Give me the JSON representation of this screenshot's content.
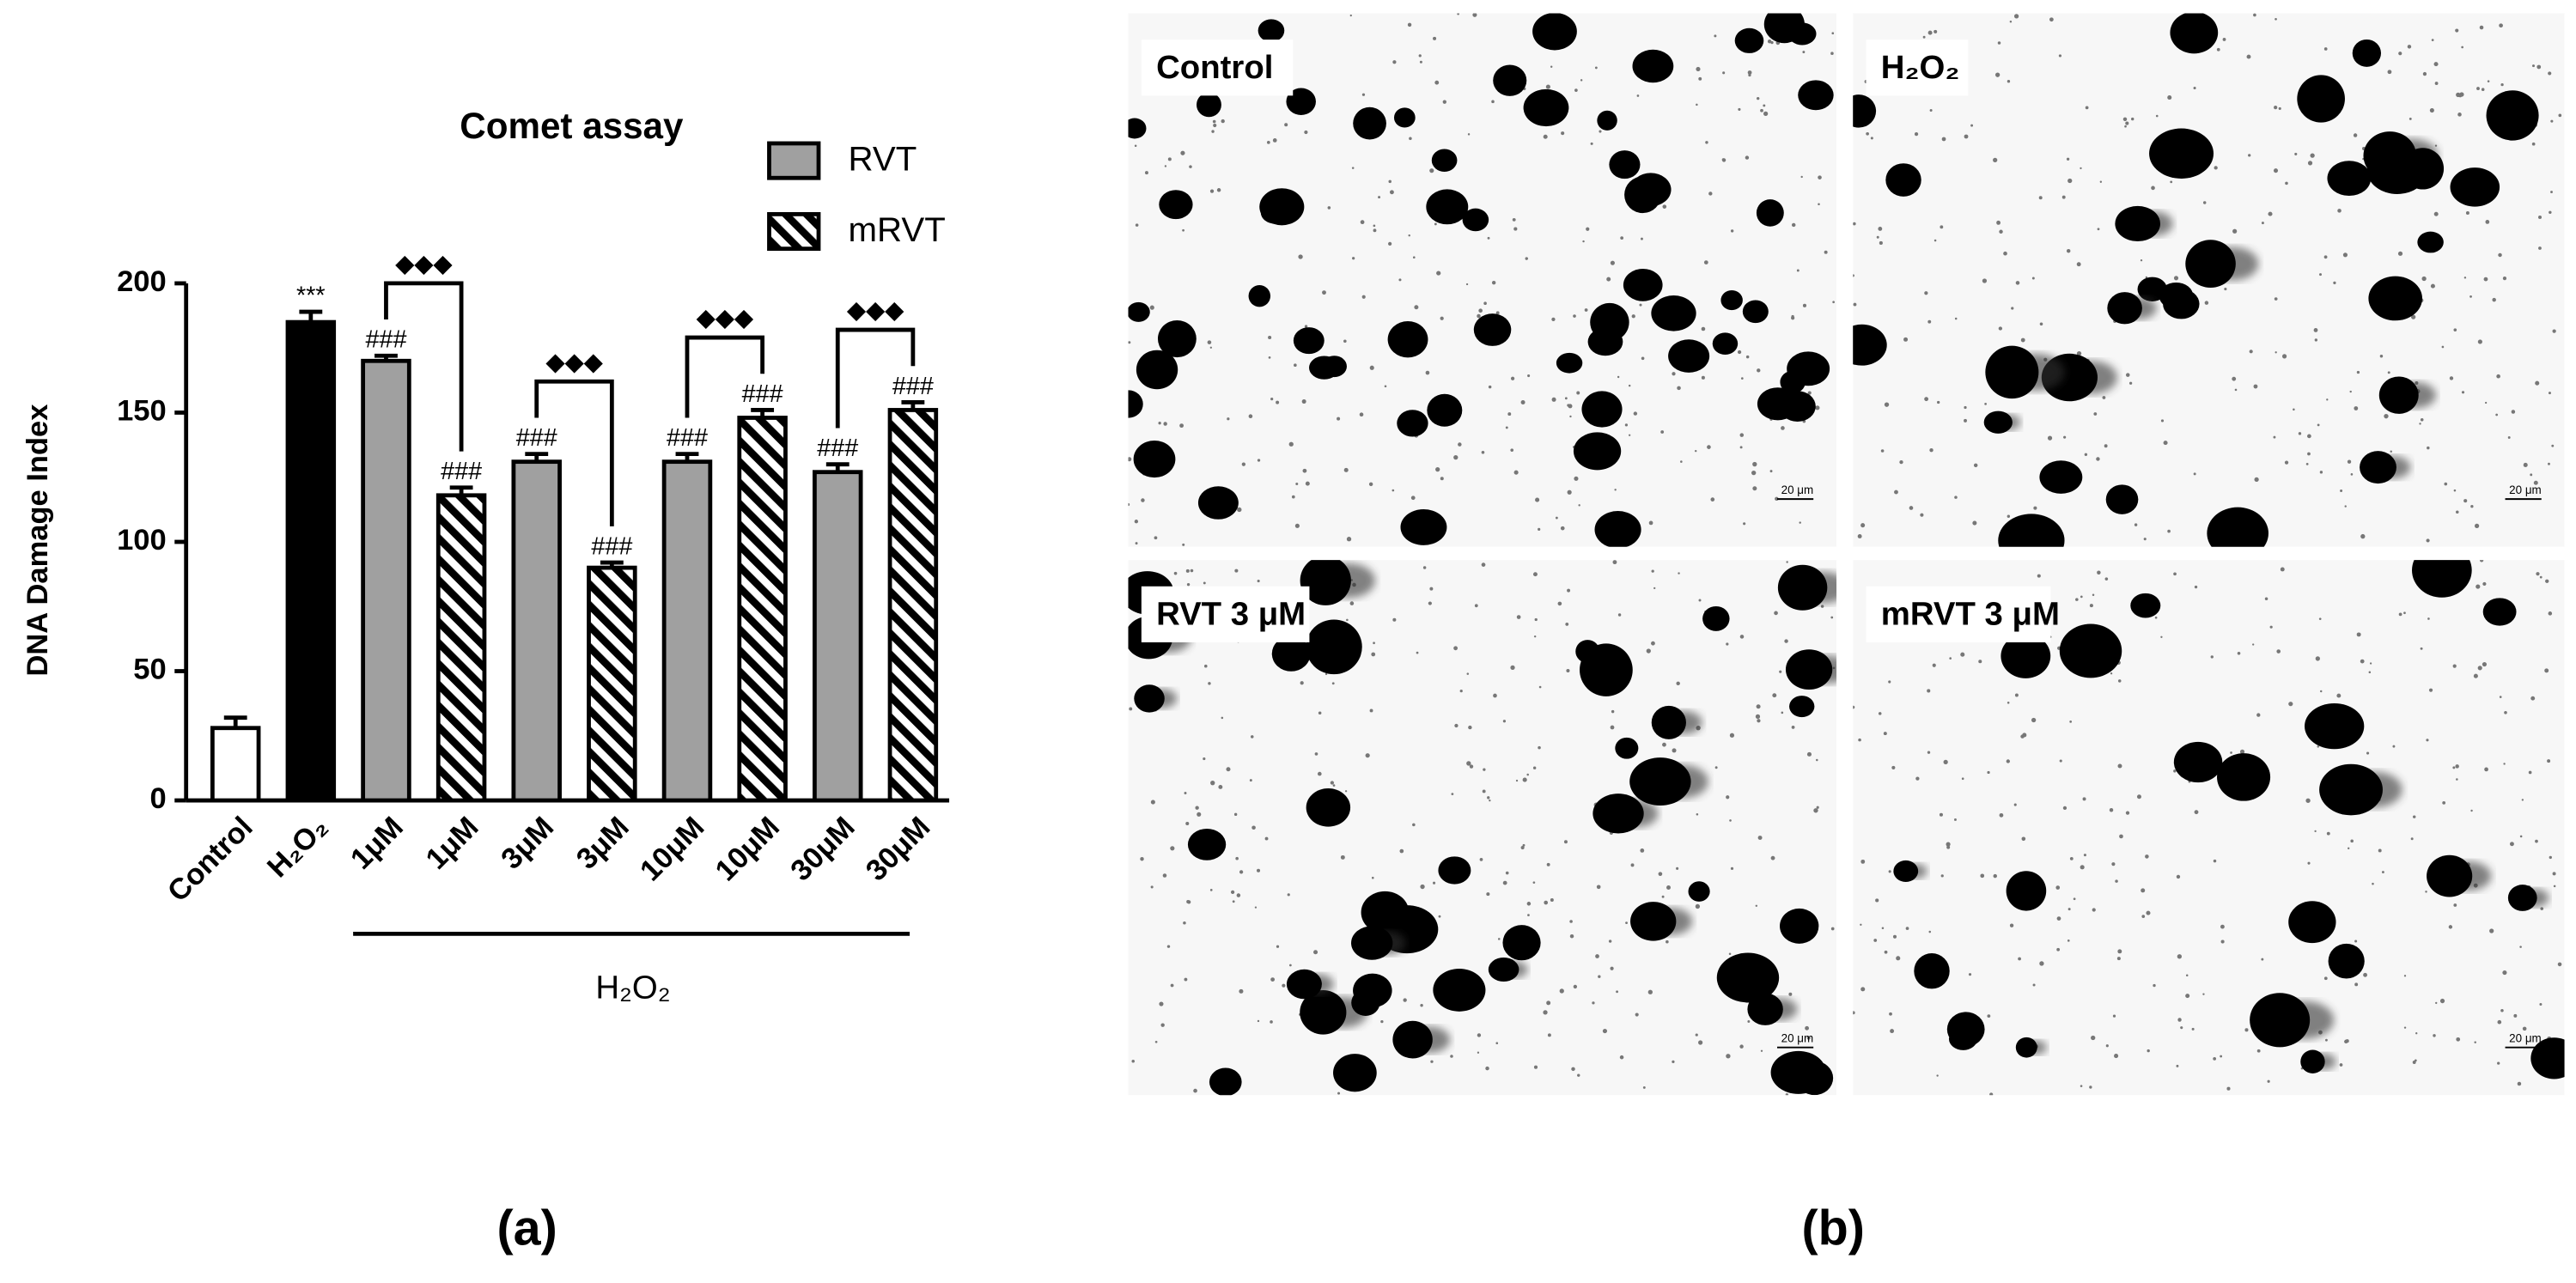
{
  "chart_data": {
    "type": "bar",
    "title": "Comet assay",
    "y_label": "DNA Damage Index",
    "categories": [
      "Control",
      "H₂O₂",
      "1μM",
      "1μM",
      "3μM",
      "3μM",
      "10μM",
      "10μM",
      "30μM",
      "30μM"
    ],
    "values": [
      28,
      185,
      170,
      118,
      131,
      90,
      131,
      148,
      127,
      151
    ],
    "errors": [
      4,
      4,
      2,
      3,
      3,
      2,
      3,
      3,
      3,
      3
    ],
    "fills": [
      "#ffffff",
      "#000000",
      "#a0a0a0",
      "hatch",
      "#a0a0a0",
      "hatch",
      "#a0a0a0",
      "hatch",
      "#a0a0a0",
      "hatch"
    ],
    "bar_labels": [
      null,
      "***",
      "###",
      "###",
      "###",
      "###",
      "###",
      "###",
      "###",
      "###"
    ],
    "ylim": [
      0,
      200
    ],
    "yticks": [
      0,
      50,
      100,
      150,
      200
    ],
    "legend": [
      {
        "name": "RVT",
        "fill": "#a0a0a0"
      },
      {
        "name": "mRVT",
        "fill": "hatch"
      }
    ],
    "comparisons": [
      {
        "bars": [
          2,
          3
        ],
        "label": "◆◆◆"
      },
      {
        "bars": [
          4,
          5
        ],
        "label": "◆◆◆"
      },
      {
        "bars": [
          6,
          7
        ],
        "label": "◆◆◆"
      },
      {
        "bars": [
          8,
          9
        ],
        "label": "◆◆◆"
      }
    ],
    "group": {
      "label": "H₂O₂",
      "bars": [
        2,
        9
      ]
    }
  },
  "panel_labels": [
    "(a)",
    "(b)"
  ],
  "images": [
    {
      "label": "Control",
      "scale": "20 μm"
    },
    {
      "label": "H₂O₂",
      "scale": "20 μm"
    },
    {
      "label": "RVT 3 μM",
      "scale": "20 μm"
    },
    {
      "label": "mRVT 3 μM",
      "scale": "20 μm"
    }
  ]
}
